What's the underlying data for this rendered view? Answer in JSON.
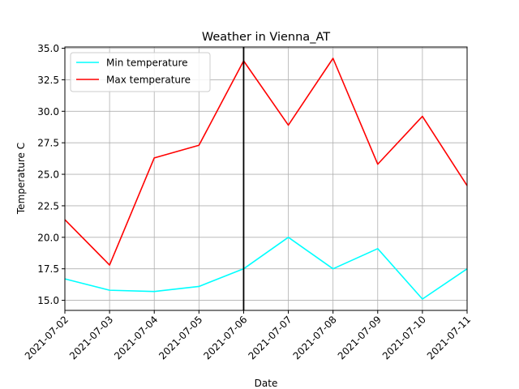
{
  "chart_data": {
    "type": "line",
    "title": "Weather in Vienna_AT",
    "xlabel": "Date",
    "ylabel": "Temperature C",
    "x": [
      "2021-07-02",
      "2021-07-03",
      "2021-07-04",
      "2021-07-05",
      "2021-07-06",
      "2021-07-07",
      "2021-07-08",
      "2021-07-09",
      "2021-07-10",
      "2021-07-11"
    ],
    "ylim": [
      14.2,
      35.1
    ],
    "yticks": [
      "15.0",
      "17.5",
      "20.0",
      "22.5",
      "25.0",
      "27.5",
      "30.0",
      "32.5",
      "35.0"
    ],
    "grid": true,
    "legend_position": "upper-left",
    "marker_date": "2021-07-06",
    "marker_color": "#000000",
    "series": [
      {
        "name": "Min temperature",
        "color": "#00ffff",
        "values": [
          16.7,
          15.8,
          15.7,
          16.1,
          17.5,
          20.0,
          17.5,
          19.1,
          15.1,
          17.5
        ]
      },
      {
        "name": "Max temperature",
        "color": "#ff0000",
        "values": [
          21.4,
          17.8,
          26.3,
          27.3,
          34.0,
          28.9,
          34.2,
          25.8,
          29.6,
          24.1
        ]
      }
    ]
  }
}
